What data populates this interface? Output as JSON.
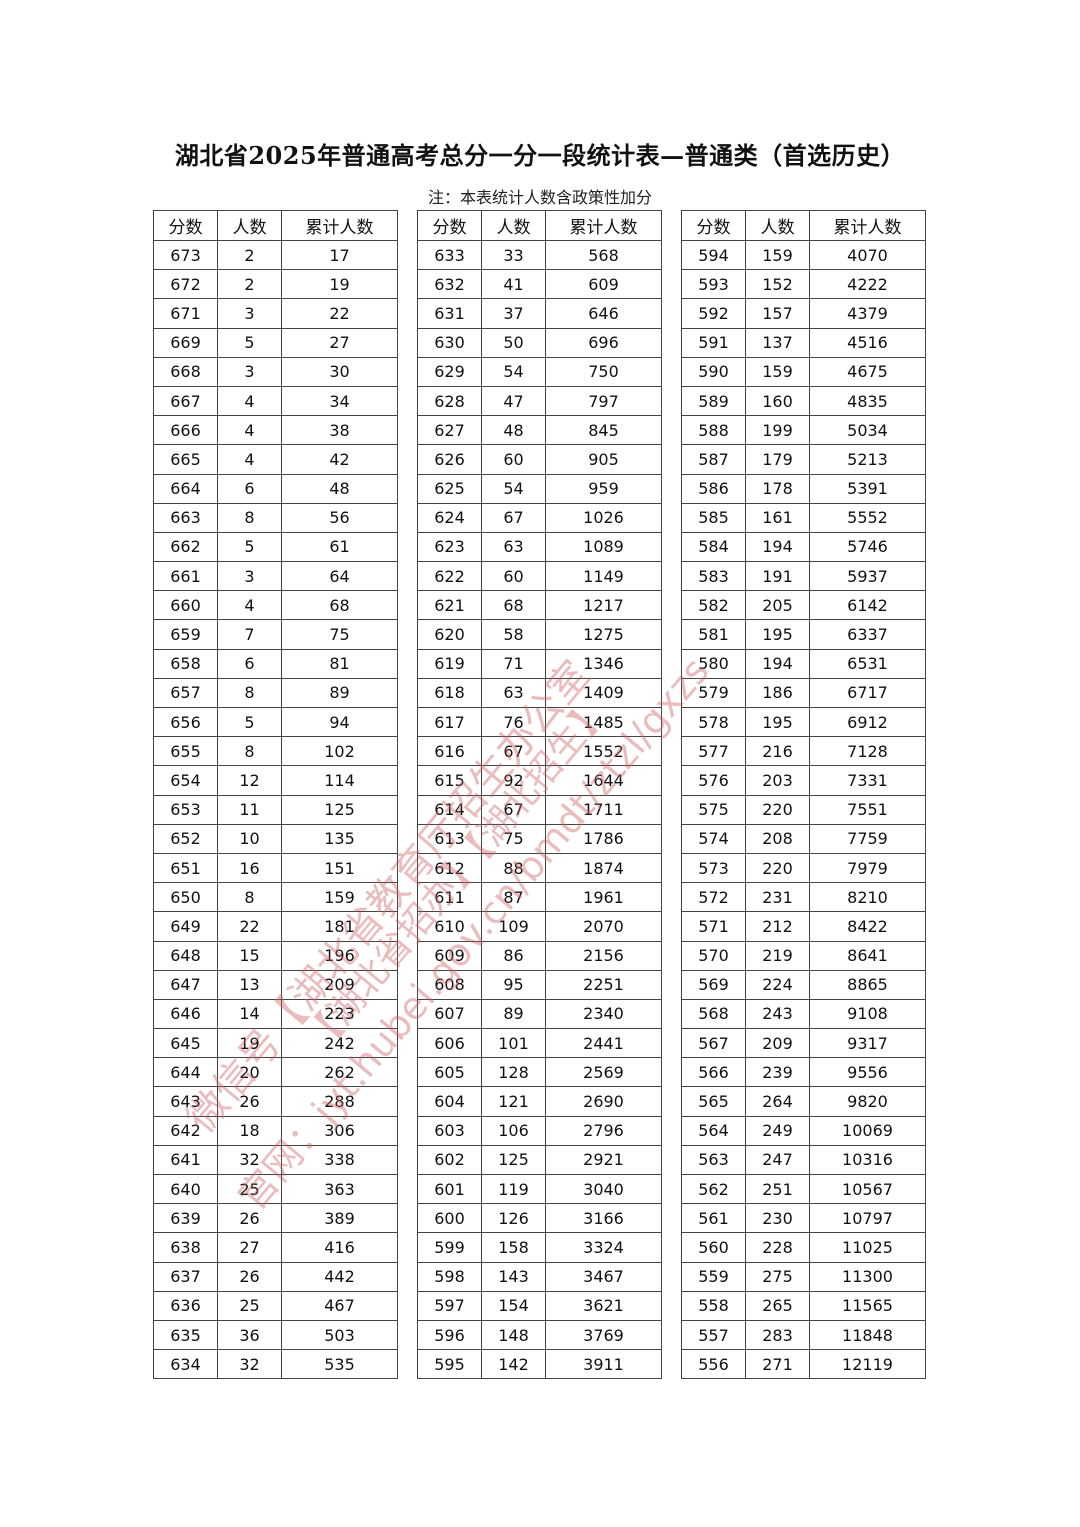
{
  "title": "湖北省2025年普通高考总分一分一段统计表—普通类（首选历史）",
  "note": "注：本表统计人数含政策性加分",
  "headers": [
    "分数",
    "人数",
    "累计人数"
  ],
  "tables": [
    [
      [
        673,
        2,
        17
      ],
      [
        672,
        2,
        19
      ],
      [
        671,
        3,
        22
      ],
      [
        669,
        5,
        27
      ],
      [
        668,
        3,
        30
      ],
      [
        667,
        4,
        34
      ],
      [
        666,
        4,
        38
      ],
      [
        665,
        4,
        42
      ],
      [
        664,
        6,
        48
      ],
      [
        663,
        8,
        56
      ],
      [
        662,
        5,
        61
      ],
      [
        661,
        3,
        64
      ],
      [
        660,
        4,
        68
      ],
      [
        659,
        7,
        75
      ],
      [
        658,
        6,
        81
      ],
      [
        657,
        8,
        89
      ],
      [
        656,
        5,
        94
      ],
      [
        655,
        8,
        102
      ],
      [
        654,
        12,
        114
      ],
      [
        653,
        11,
        125
      ],
      [
        652,
        10,
        135
      ],
      [
        651,
        16,
        151
      ],
      [
        650,
        8,
        159
      ],
      [
        649,
        22,
        181
      ],
      [
        648,
        15,
        196
      ],
      [
        647,
        13,
        209
      ],
      [
        646,
        14,
        223
      ],
      [
        645,
        19,
        242
      ],
      [
        644,
        20,
        262
      ],
      [
        643,
        26,
        288
      ],
      [
        642,
        18,
        306
      ],
      [
        641,
        32,
        338
      ],
      [
        640,
        25,
        363
      ],
      [
        639,
        26,
        389
      ],
      [
        638,
        27,
        416
      ],
      [
        637,
        26,
        442
      ],
      [
        636,
        25,
        467
      ],
      [
        635,
        36,
        503
      ],
      [
        634,
        32,
        535
      ]
    ],
    [
      [
        633,
        33,
        568
      ],
      [
        632,
        41,
        609
      ],
      [
        631,
        37,
        646
      ],
      [
        630,
        50,
        696
      ],
      [
        629,
        54,
        750
      ],
      [
        628,
        47,
        797
      ],
      [
        627,
        48,
        845
      ],
      [
        626,
        60,
        905
      ],
      [
        625,
        54,
        959
      ],
      [
        624,
        67,
        1026
      ],
      [
        623,
        63,
        1089
      ],
      [
        622,
        60,
        1149
      ],
      [
        621,
        68,
        1217
      ],
      [
        620,
        58,
        1275
      ],
      [
        619,
        71,
        1346
      ],
      [
        618,
        63,
        1409
      ],
      [
        617,
        76,
        1485
      ],
      [
        616,
        67,
        1552
      ],
      [
        615,
        92,
        1644
      ],
      [
        614,
        67,
        1711
      ],
      [
        613,
        75,
        1786
      ],
      [
        612,
        88,
        1874
      ],
      [
        611,
        87,
        1961
      ],
      [
        610,
        109,
        2070
      ],
      [
        609,
        86,
        2156
      ],
      [
        608,
        95,
        2251
      ],
      [
        607,
        89,
        2340
      ],
      [
        606,
        101,
        2441
      ],
      [
        605,
        128,
        2569
      ],
      [
        604,
        121,
        2690
      ],
      [
        603,
        106,
        2796
      ],
      [
        602,
        125,
        2921
      ],
      [
        601,
        119,
        3040
      ],
      [
        600,
        126,
        3166
      ],
      [
        599,
        158,
        3324
      ],
      [
        598,
        143,
        3467
      ],
      [
        597,
        154,
        3621
      ],
      [
        596,
        148,
        3769
      ],
      [
        595,
        142,
        3911
      ]
    ],
    [
      [
        594,
        159,
        4070
      ],
      [
        593,
        152,
        4222
      ],
      [
        592,
        157,
        4379
      ],
      [
        591,
        137,
        4516
      ],
      [
        590,
        159,
        4675
      ],
      [
        589,
        160,
        4835
      ],
      [
        588,
        199,
        5034
      ],
      [
        587,
        179,
        5213
      ],
      [
        586,
        178,
        5391
      ],
      [
        585,
        161,
        5552
      ],
      [
        584,
        194,
        5746
      ],
      [
        583,
        191,
        5937
      ],
      [
        582,
        205,
        6142
      ],
      [
        581,
        195,
        6337
      ],
      [
        580,
        194,
        6531
      ],
      [
        579,
        186,
        6717
      ],
      [
        578,
        195,
        6912
      ],
      [
        577,
        216,
        7128
      ],
      [
        576,
        203,
        7331
      ],
      [
        575,
        220,
        7551
      ],
      [
        574,
        208,
        7759
      ],
      [
        573,
        220,
        7979
      ],
      [
        572,
        231,
        8210
      ],
      [
        571,
        212,
        8422
      ],
      [
        570,
        219,
        8641
      ],
      [
        569,
        224,
        8865
      ],
      [
        568,
        243,
        9108
      ],
      [
        567,
        209,
        9317
      ],
      [
        566,
        239,
        9556
      ],
      [
        565,
        264,
        9820
      ],
      [
        564,
        249,
        10069
      ],
      [
        563,
        247,
        10316
      ],
      [
        562,
        251,
        10567
      ],
      [
        561,
        230,
        10797
      ],
      [
        560,
        228,
        11025
      ],
      [
        559,
        275,
        11300
      ],
      [
        558,
        265,
        11565
      ],
      [
        557,
        283,
        11848
      ],
      [
        556,
        271,
        12119
      ]
    ]
  ],
  "watermark": {
    "line1": "微信号【湖北省教育厅招生办公室",
    "line2": "官网：jyt.hubei.gov.cn/bmdt/ztzl/gxzs",
    "line3": "【湖北省招办】【湖北招生】",
    "color": "#cd5f5f"
  }
}
